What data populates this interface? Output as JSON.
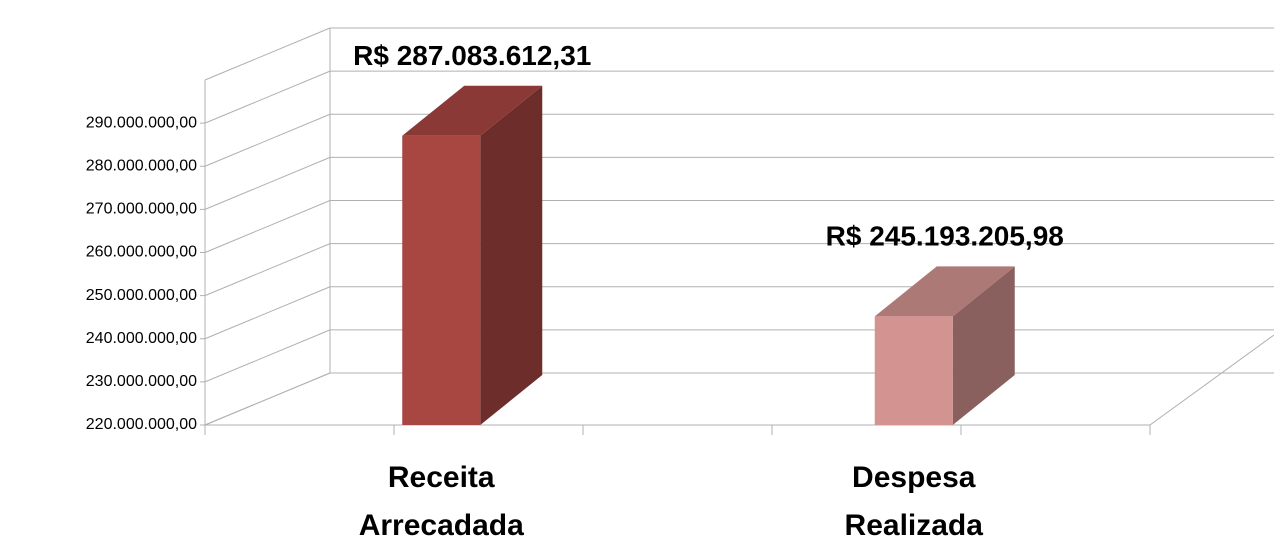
{
  "chart_data": {
    "type": "bar3d",
    "categories": [
      "Receita Arrecadada",
      "Despesa Realizada"
    ],
    "values": [
      287083612.31,
      245193205.98
    ],
    "value_labels": [
      "R$ 287.083.612,31",
      "R$ 245.193.205,98"
    ],
    "colors": [
      "#a84642",
      "#d39391"
    ],
    "ylim": [
      220000000,
      300000000
    ],
    "yticks": [
      {
        "value": 220000000,
        "label": "220.000.000,00"
      },
      {
        "value": 230000000,
        "label": "230.000.000,00"
      },
      {
        "value": 240000000,
        "label": "240.000.000,00"
      },
      {
        "value": 250000000,
        "label": "250.000.000,00"
      },
      {
        "value": 260000000,
        "label": "260.000.000,00"
      },
      {
        "value": 270000000,
        "label": "270.000.000,00"
      },
      {
        "value": 280000000,
        "label": "280.000.000,00"
      },
      {
        "value": 290000000,
        "label": "290.000.000,00"
      }
    ],
    "grid": true
  }
}
